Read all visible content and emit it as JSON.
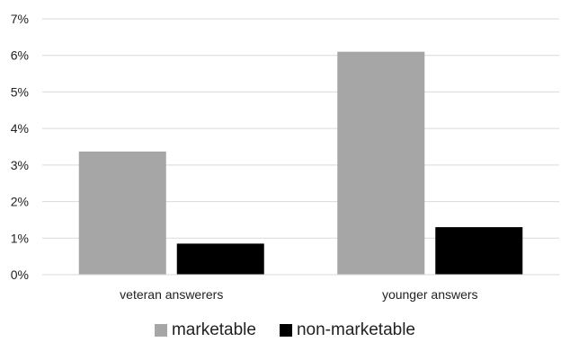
{
  "chart_data": {
    "type": "bar",
    "categories": [
      "veteran answerers",
      "younger answers"
    ],
    "series": [
      {
        "name": "marketable",
        "values": [
          3.37,
          6.1
        ],
        "color": "#a6a6a6"
      },
      {
        "name": "non-marketable",
        "values": [
          0.85,
          1.3
        ],
        "color": "#000000"
      }
    ],
    "yticks": [
      "0%",
      "1%",
      "2%",
      "3%",
      "4%",
      "5%",
      "6%",
      "7%"
    ],
    "ylim": [
      0,
      7
    ],
    "unit": "%",
    "grid": true,
    "legend_position": "bottom",
    "title": "",
    "xlabel": "",
    "ylabel": ""
  }
}
